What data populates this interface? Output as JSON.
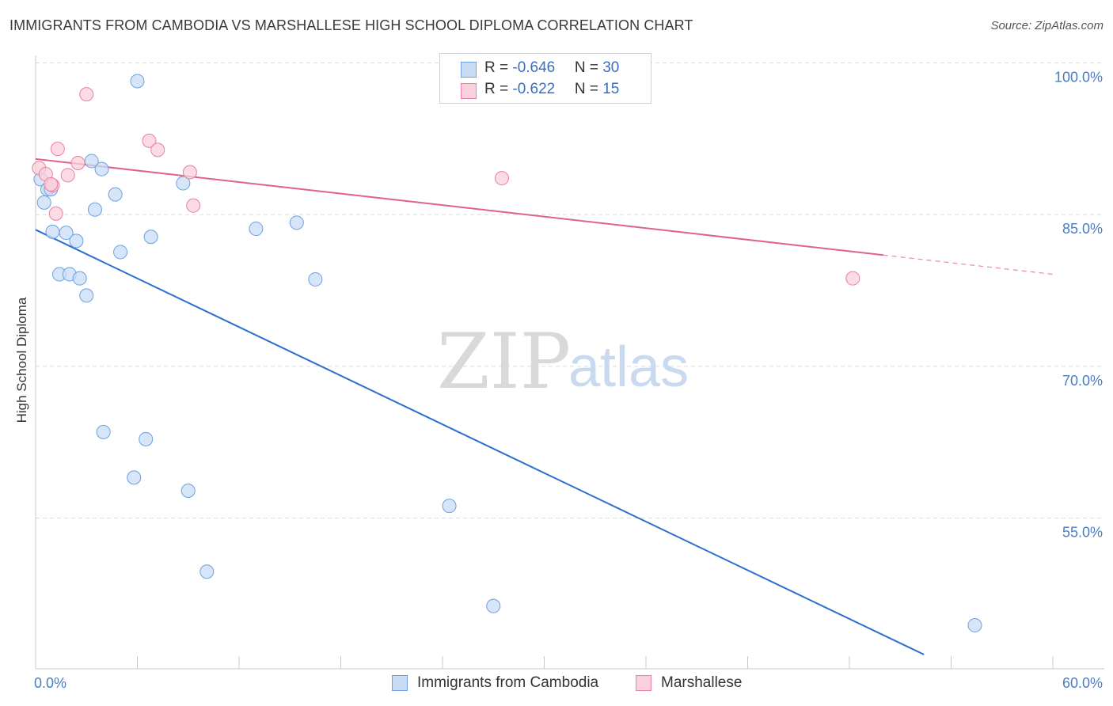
{
  "title": "IMMIGRANTS FROM CAMBODIA VS MARSHALLESE HIGH SCHOOL DIPLOMA CORRELATION CHART",
  "source": "Source: ZipAtlas.com",
  "watermark": {
    "zip": "ZIP",
    "atlas": "atlas"
  },
  "legend": {
    "rows": [
      {
        "r_label": "R = ",
        "r_value": "-0.646",
        "n_label": "N = ",
        "n_value": "30"
      },
      {
        "r_label": "R = ",
        "r_value": "-0.622",
        "n_label": "N = ",
        "n_value": "15"
      }
    ]
  },
  "chart_data": {
    "type": "scatter",
    "title": "IMMIGRANTS FROM CAMBODIA VS MARSHALLESE HIGH SCHOOL DIPLOMA CORRELATION CHART",
    "xlabel": "",
    "ylabel": "High School Diploma",
    "xlim": [
      0,
      60
    ],
    "ylim": [
      41.5,
      102
    ],
    "x_tick_labels": [
      "0.0%",
      "60.0%"
    ],
    "y_ticks": [
      55,
      70,
      85,
      100
    ],
    "y_tick_labels": [
      "55.0%",
      "70.0%",
      "85.0%",
      "100.0%"
    ],
    "grid": true,
    "legend_position": "top-center",
    "series": [
      {
        "name": "Immigrants from Cambodia",
        "color": "#6aa0e0",
        "fill": "#c9dcf5",
        "r": -0.646,
        "n": 30,
        "trend": {
          "x0": 0,
          "y0": 83.5,
          "x1": 52.4,
          "y1": 41.5
        },
        "points": [
          [
            0.3,
            88.5
          ],
          [
            0.5,
            86.2
          ],
          [
            0.7,
            87.5
          ],
          [
            1.0,
            83.3
          ],
          [
            1.4,
            79.1
          ],
          [
            1.8,
            83.2
          ],
          [
            2.0,
            79.1
          ],
          [
            2.4,
            82.4
          ],
          [
            2.6,
            78.7
          ],
          [
            3.0,
            77.0
          ],
          [
            3.3,
            90.3
          ],
          [
            3.5,
            85.5
          ],
          [
            3.9,
            89.5
          ],
          [
            4.7,
            87.0
          ],
          [
            5.0,
            81.3
          ],
          [
            6.0,
            98.2
          ],
          [
            6.8,
            82.8
          ],
          [
            8.7,
            88.1
          ],
          [
            13.0,
            83.6
          ],
          [
            15.4,
            84.2
          ],
          [
            16.5,
            78.6
          ],
          [
            4.0,
            63.5
          ],
          [
            6.5,
            62.8
          ],
          [
            5.8,
            59.0
          ],
          [
            9.0,
            57.7
          ],
          [
            10.1,
            49.7
          ],
          [
            24.4,
            56.2
          ],
          [
            27.0,
            46.3
          ],
          [
            55.4,
            44.4
          ],
          [
            0.9,
            87.5
          ]
        ]
      },
      {
        "name": "Marshallese",
        "color": "#ec7fa0",
        "fill": "#f9d0dc",
        "r": -0.622,
        "n": 15,
        "trend": {
          "x0": 0,
          "y0": 90.5,
          "x1": 50,
          "y1": 81.0,
          "x1_dash": 60,
          "y1_dash": 79.1
        },
        "points": [
          [
            0.2,
            89.6
          ],
          [
            0.6,
            89.0
          ],
          [
            1.0,
            87.9
          ],
          [
            1.2,
            85.1
          ],
          [
            1.3,
            91.5
          ],
          [
            1.9,
            88.9
          ],
          [
            2.5,
            90.1
          ],
          [
            3.0,
            96.9
          ],
          [
            6.7,
            92.3
          ],
          [
            7.2,
            91.4
          ],
          [
            9.1,
            89.2
          ],
          [
            9.3,
            85.9
          ],
          [
            27.5,
            88.6
          ],
          [
            48.2,
            78.7
          ],
          [
            0.9,
            88.0
          ]
        ]
      }
    ]
  }
}
